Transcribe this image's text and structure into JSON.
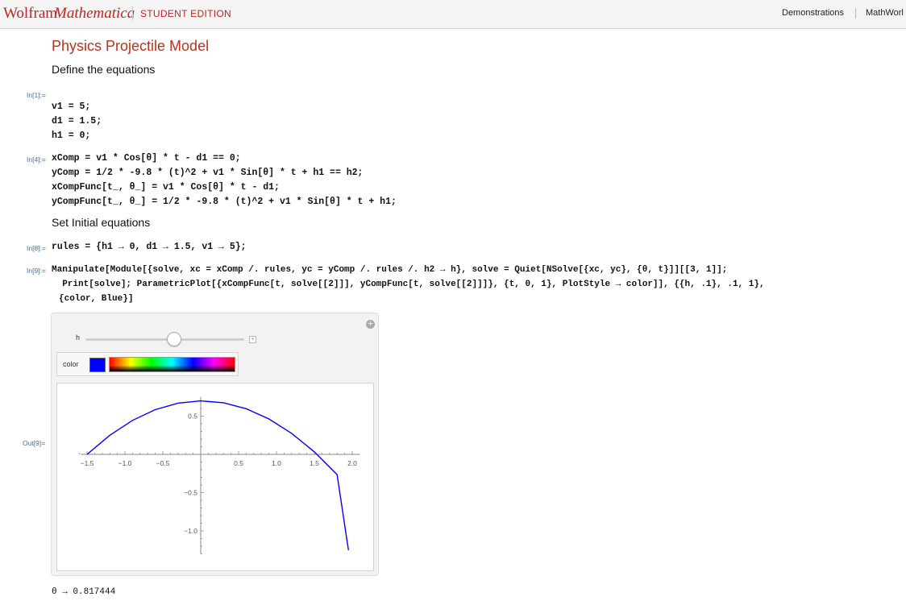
{
  "header": {
    "brand": "Wolfram",
    "product": "Mathematica",
    "edition": "STUDENT EDITION",
    "links": [
      "Demonstrations",
      "MathWorl"
    ]
  },
  "notebook": {
    "title": "Physics Projectile Model",
    "text1": "Define the equations",
    "text2": "Set Initial equations",
    "in1_label": "In[1]:=",
    "in1_lines": [
      "v1 = 5;",
      "d1 = 1.5;",
      "h1 = 0;"
    ],
    "in4_label": "In[4]:=",
    "in4_lines": [
      "xComp = v1 * Cos[θ] * t - d1 == 0;",
      "yComp = 1/2 * -9.8 * (t)^2 + v1 * Sin[θ] * t + h1 == h2;",
      "xCompFunc[t_, θ_] = v1 * Cos[θ] * t - d1;",
      "yCompFunc[t_, θ_] = 1/2 * -9.8 * (t)^2 + v1 * Sin[θ] * t + h1;"
    ],
    "in8_label": "In[8]:=",
    "in8_line": "rules = {h1 → 0, d1 → 1.5, v1 → 5};",
    "in9_label": "In[9]:=",
    "in9_lines": [
      "Manipulate[Module[{solve, xc = xComp /. rules, yc = yComp /. rules /. h2 → h}, solve = Quiet[NSolve[{xc, yc}, {θ, t}]][[3, 1]];",
      "  Print[solve]; ParametricPlot[{xCompFunc[t, solve[[2]]], yCompFunc[t, solve[[2]]]}, {t, 0, 1}, PlotStyle → color]], {{h, .1}, .1, 1},",
      "{color, Blue}]"
    ],
    "out9_label": "Out[9]=",
    "result": "θ → 0.817444"
  },
  "manipulate": {
    "h_label": "h",
    "h_value": 0.6,
    "color_label": "color",
    "color_value": "#0000ff"
  },
  "chart_data": {
    "type": "line",
    "series": [
      {
        "color": "#0000ff",
        "x": [
          -1.5,
          -1.2,
          -0.9,
          -0.6,
          -0.3,
          0.0,
          0.3,
          0.6,
          0.9,
          1.2,
          1.5,
          1.8,
          1.95
        ],
        "y": [
          0.0,
          0.249,
          0.444,
          0.584,
          0.669,
          0.699,
          0.675,
          0.597,
          0.463,
          0.275,
          0.033,
          -0.264,
          -1.25
        ]
      }
    ],
    "x_ticks": [
      "-1.5",
      "-1.0",
      "-0.5",
      "0.5",
      "1.0",
      "1.5",
      "2.0"
    ],
    "y_ticks": [
      "0.5",
      "-0.5",
      "-1.0"
    ],
    "xlim": [
      -1.5,
      2.1
    ],
    "ylim": [
      -1.3,
      0.75
    ]
  }
}
